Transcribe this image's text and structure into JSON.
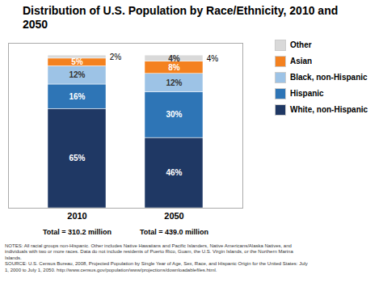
{
  "chart_data": {
    "type": "bar",
    "stacked": true,
    "title": "Distribution of U.S. Population by Race/Ethnicity, 2010 and\n2050",
    "categories": [
      "2010",
      "2050"
    ],
    "category_notes": [
      "Total = 310.2 million",
      "Total = 439.0 million"
    ],
    "series": [
      {
        "name": "White, non-Hispanic",
        "color": "#1f3864",
        "values": [
          65,
          46
        ],
        "value_labels": [
          "65%",
          "46%"
        ]
      },
      {
        "name": "Hispanic",
        "color": "#2e75b6",
        "values": [
          16,
          30
        ],
        "value_labels": [
          "16%",
          "30%"
        ]
      },
      {
        "name": "Black, non-Hispanic",
        "color": "#9dc3e6",
        "values": [
          12,
          12
        ],
        "value_labels": [
          "12%",
          "12%"
        ]
      },
      {
        "name": "Asian",
        "color": "#f4811f",
        "values": [
          5,
          8
        ],
        "value_labels": [
          "5%",
          "8%"
        ]
      },
      {
        "name": "Other",
        "color": "#d9d9d9",
        "values": [
          2,
          4
        ],
        "value_labels": [
          null,
          "4%"
        ]
      }
    ],
    "annotations": [
      {
        "text": "2%",
        "x": "2010",
        "series": "Other"
      },
      {
        "text": "4%",
        "x": "2050",
        "series": "Other"
      }
    ],
    "ylim": [
      0,
      108
    ],
    "data_labels": true,
    "tick_labels": "x",
    "grid": false,
    "legend": "right",
    "notes": [
      "NOTES: All racial groups non-Hispanic. Other includes Native Hawaiians and Pacific Islanders, Native Americans/Alaska Natives, and",
      "individuals with two or more races. Data do not include residents of Puerto Rico, Guam, the U.S. Virgin Islands, or the Northern Marina",
      "Islands.",
      "SOURCE: U.S. Census Bureau, 2008, Projected Population by Single Year of Age, Sex, Race, and Hispanic Origin for the United States: July",
      "1, 2000 to July 1, 2050.  http://www.census.gov/population/www/projections/downloadablefiles.html."
    ]
  }
}
